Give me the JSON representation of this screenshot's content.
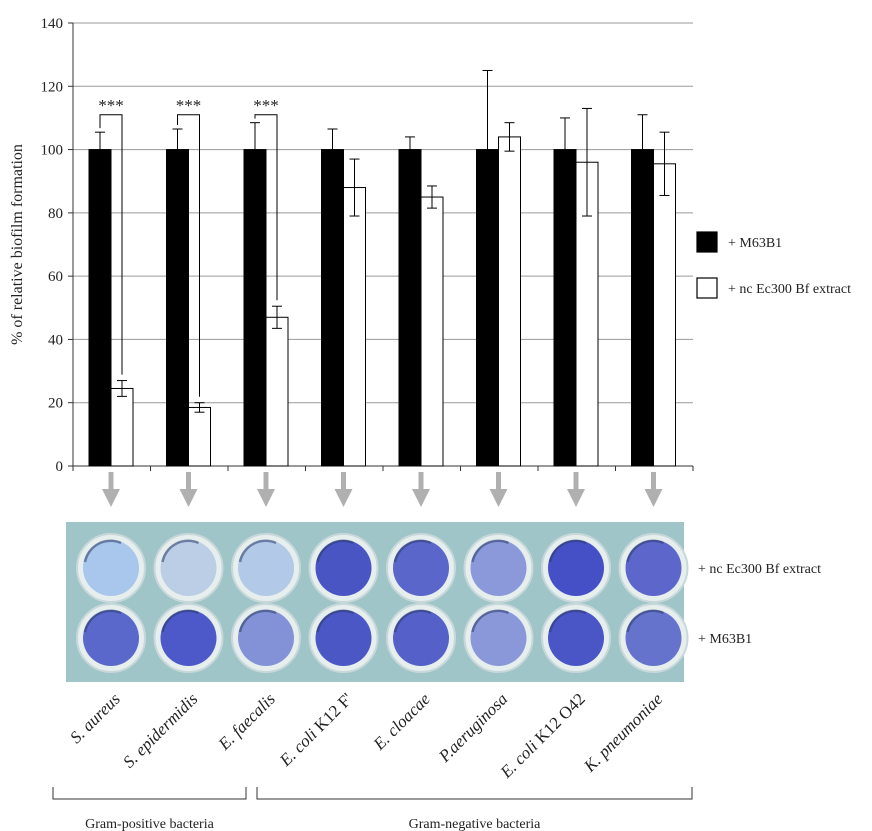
{
  "chart_data": {
    "type": "bar",
    "ylabel": "% of relative  biofilm formation",
    "ylim": [
      0,
      140
    ],
    "y_ticks": [
      "0",
      "20",
      "40",
      "60",
      "80",
      "100",
      "120",
      "140"
    ],
    "grid": true,
    "legend_position": "right",
    "categories": [
      {
        "main": "S. aureus",
        "suffix": ""
      },
      {
        "main": "S. epidermidis",
        "suffix": ""
      },
      {
        "main": "E. faecalis",
        "suffix": ""
      },
      {
        "main": "E. coli",
        "suffix": " K12 F'"
      },
      {
        "main": "E. cloacae",
        "suffix": ""
      },
      {
        "main": "P.aeruginosa",
        "suffix": ""
      },
      {
        "main": "E. coli",
        "suffix": " K12 O42"
      },
      {
        "main": "K. pneumoniae",
        "suffix": ""
      }
    ],
    "series": [
      {
        "name": "+ M63B1",
        "color": "#000000",
        "values": [
          100,
          100,
          100,
          100,
          100,
          100,
          100,
          100
        ],
        "errors": [
          5.5,
          6.5,
          8.5,
          6.5,
          4,
          25,
          10,
          11
        ]
      },
      {
        "name": "+ nc Ec300 Bf extract",
        "color": "#ffffff",
        "values": [
          24.5,
          18.5,
          47,
          88,
          85,
          104,
          96,
          95.5
        ],
        "errors": [
          2.5,
          1.5,
          3.5,
          9,
          3.5,
          4.5,
          17,
          10
        ]
      }
    ],
    "significance": [
      {
        "index": 0,
        "label": "***"
      },
      {
        "index": 1,
        "label": "***"
      },
      {
        "index": 2,
        "label": "***"
      }
    ]
  },
  "plate": {
    "rows": [
      {
        "label": "+ nc Ec300 Bf extract",
        "wells": [
          "#a9c6ec",
          "#bccde6",
          "#b2cae8",
          "#4a55c4",
          "#5a66c9",
          "#8b99da",
          "#4650c6",
          "#5d67cb"
        ]
      },
      {
        "label": "+ M63B1",
        "wells": [
          "#5a68cc",
          "#4d59c8",
          "#8392d6",
          "#4c57c6",
          "#5560c8",
          "#8a98da",
          "#4a55c6",
          "#6673cd"
        ]
      }
    ],
    "background": "#9fc5c8"
  },
  "groups": [
    {
      "label": "Gram-positive bacteria",
      "first": 0,
      "last": 2
    },
    {
      "label": "Gram-negative bacteria",
      "first": 3,
      "last": 7
    }
  ]
}
